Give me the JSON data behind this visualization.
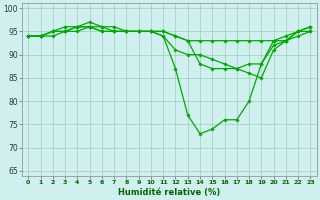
{
  "hours": [
    0,
    1,
    2,
    3,
    4,
    5,
    6,
    7,
    8,
    9,
    10,
    11,
    12,
    13,
    14,
    15,
    16,
    17,
    18,
    19,
    20,
    21,
    22,
    23
  ],
  "series": [
    [
      94,
      94,
      95,
      95,
      96,
      96,
      96,
      95,
      95,
      95,
      95,
      94,
      87,
      77,
      73,
      74,
      76,
      76,
      80,
      88,
      92,
      93,
      95,
      96
    ],
    [
      94,
      94,
      95,
      96,
      96,
      97,
      96,
      96,
      95,
      95,
      95,
      95,
      94,
      93,
      88,
      87,
      87,
      87,
      88,
      88,
      93,
      94,
      95,
      96
    ],
    [
      94,
      94,
      95,
      95,
      96,
      96,
      95,
      95,
      95,
      95,
      95,
      94,
      91,
      90,
      90,
      89,
      88,
      87,
      86,
      85,
      91,
      93,
      94,
      95
    ],
    [
      94,
      94,
      94,
      95,
      95,
      96,
      95,
      95,
      95,
      95,
      95,
      95,
      94,
      93,
      93,
      93,
      93,
      93,
      93,
      93,
      93,
      93,
      95,
      95
    ]
  ],
  "line_color": "#00aa00",
  "bg_color": "#d0f0f0",
  "grid_color": "#a0ccbb",
  "xlabel": "Humidité relative (%)",
  "ylim": [
    64,
    101
  ],
  "yticks": [
    65,
    70,
    75,
    80,
    85,
    90,
    95,
    100
  ],
  "xlim": [
    -0.5,
    23.5
  ],
  "xticks": [
    0,
    1,
    2,
    3,
    4,
    5,
    6,
    7,
    8,
    9,
    10,
    11,
    12,
    13,
    14,
    15,
    16,
    17,
    18,
    19,
    20,
    21,
    22,
    23
  ]
}
